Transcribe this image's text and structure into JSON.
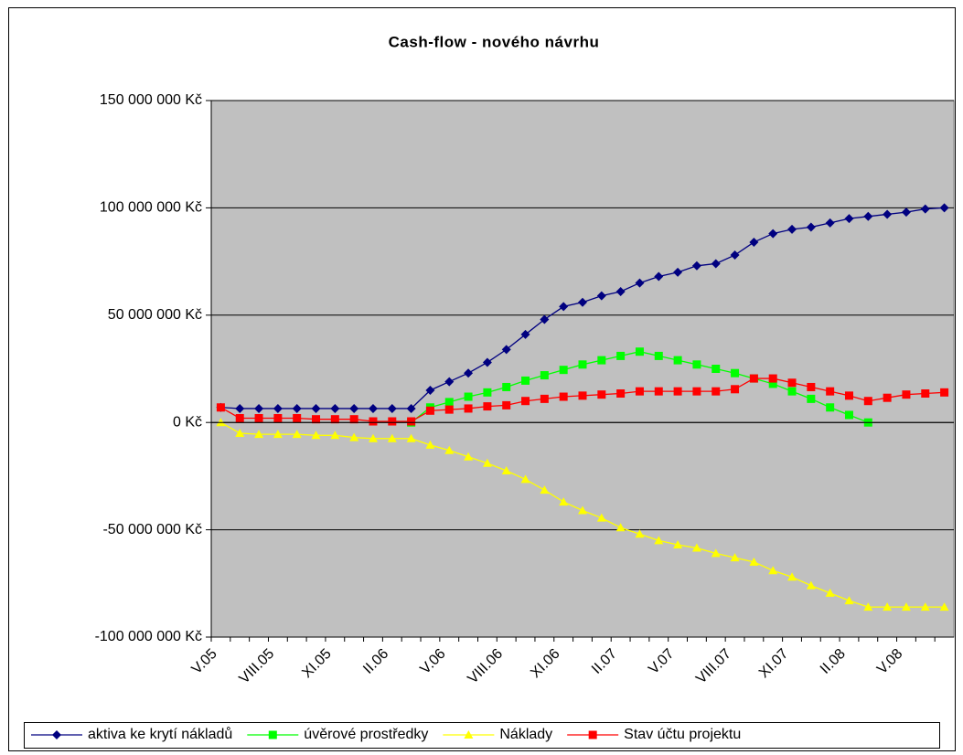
{
  "chart_data": {
    "type": "line",
    "title": "Cash-flow - nového návrhu",
    "categories": [
      "V.05",
      null,
      null,
      "VIII.05",
      null,
      null,
      "XI.05",
      null,
      null,
      "II.06",
      null,
      null,
      "V.06",
      null,
      null,
      "VIII.06",
      null,
      null,
      "XI.06",
      null,
      null,
      "II.07",
      null,
      null,
      "V.07",
      null,
      null,
      "VIII.07",
      null,
      null,
      "XI.07",
      null,
      null,
      "II.08",
      null,
      null,
      "V.08",
      null,
      null
    ],
    "ylim": [
      -100000000,
      150000000
    ],
    "yticks": [
      {
        "value": -100000000,
        "label": "-100 000 000 Kč"
      },
      {
        "value": -50000000,
        "label": "-50 000 000 Kč"
      },
      {
        "value": 0,
        "label": "0 Kč"
      },
      {
        "value": 50000000,
        "label": "50 000 000 Kč"
      },
      {
        "value": 100000000,
        "label": "100 000 000 Kč"
      },
      {
        "value": 150000000,
        "label": "150 000 000 Kč"
      }
    ],
    "grid": true,
    "legend": "bottom",
    "series": [
      {
        "name": "aktiva ke krytí nákladů",
        "color": "#000080",
        "marker": "diamond",
        "values": [
          7000000,
          6500000,
          6500000,
          6500000,
          6500000,
          6500000,
          6500000,
          6500000,
          6500000,
          6500000,
          6500000,
          15000000,
          19000000,
          23000000,
          28000000,
          34000000,
          41000000,
          48000000,
          54000000,
          56000000,
          59000000,
          61000000,
          65000000,
          68000000,
          70000000,
          73000000,
          74000000,
          78000000,
          84000000,
          88000000,
          90000000,
          91000000,
          93000000,
          95000000,
          96000000,
          97000000,
          98000000,
          99500000,
          100000000
        ]
      },
      {
        "name": "úvěrové prostředky",
        "color": "#00ff00",
        "marker": "square",
        "values": [
          null,
          null,
          null,
          null,
          null,
          null,
          null,
          null,
          null,
          null,
          0,
          7000000,
          9500000,
          12000000,
          14000000,
          16500000,
          19500000,
          22000000,
          24500000,
          27000000,
          29000000,
          31000000,
          33000000,
          31000000,
          29000000,
          27000000,
          25000000,
          23000000,
          20500000,
          18000000,
          14500000,
          11000000,
          7000000,
          3500000,
          0,
          null,
          null,
          null,
          null
        ]
      },
      {
        "name": "Náklady",
        "color": "#ffff00",
        "marker": "triangle",
        "values": [
          0,
          -5000000,
          -5500000,
          -5500000,
          -5500000,
          -6000000,
          -6000000,
          -7000000,
          -7500000,
          -7500000,
          -7500000,
          -10500000,
          -13000000,
          -16000000,
          -19000000,
          -22500000,
          -26500000,
          -31500000,
          -37000000,
          -41000000,
          -44500000,
          -49000000,
          -52000000,
          -55000000,
          -57000000,
          -58500000,
          -61000000,
          -63000000,
          -65000000,
          -69000000,
          -72000000,
          -76000000,
          -79500000,
          -83000000,
          -86000000,
          -86000000,
          -86000000,
          -86000000,
          -86000000
        ]
      },
      {
        "name": "Stav účtu projektu",
        "color": "#ff0000",
        "marker": "square",
        "values": [
          7000000,
          2000000,
          2000000,
          2000000,
          2000000,
          1500000,
          1500000,
          1500000,
          500000,
          500000,
          500000,
          5500000,
          6000000,
          6500000,
          7500000,
          8000000,
          10000000,
          11000000,
          12000000,
          12500000,
          13000000,
          13500000,
          14500000,
          14500000,
          14500000,
          14500000,
          14500000,
          15500000,
          20500000,
          20500000,
          18500000,
          16500000,
          14500000,
          12500000,
          10000000,
          11500000,
          13000000,
          13500000,
          14000000
        ]
      }
    ]
  }
}
